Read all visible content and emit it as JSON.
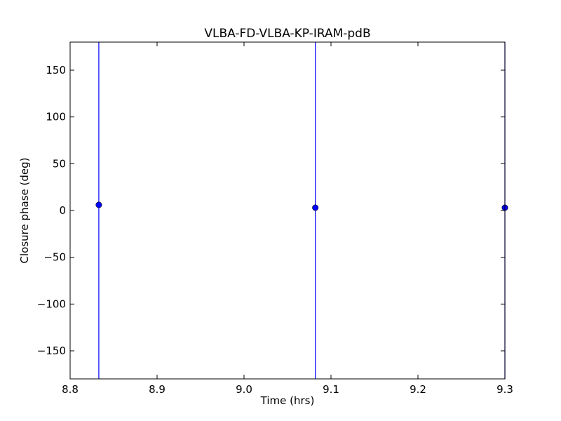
{
  "chart_data": {
    "type": "scatter",
    "title": "VLBA-FD-VLBA-KP-IRAM-pdB",
    "xlabel": "Time (hrs)",
    "ylabel": "Closure phase (deg)",
    "xlim": [
      8.8,
      9.3
    ],
    "ylim": [
      -180,
      180
    ],
    "x_ticks": [
      8.8,
      8.9,
      9.0,
      9.1,
      9.2,
      9.3
    ],
    "x_tick_labels": [
      "8.8",
      "8.9",
      "9.0",
      "9.1",
      "9.2",
      "9.3"
    ],
    "y_ticks": [
      -150,
      -100,
      -50,
      0,
      50,
      100,
      150
    ],
    "y_tick_labels": [
      "−150",
      "−100",
      "−50",
      "0",
      "50",
      "100",
      "150"
    ],
    "grid": false,
    "color": "#0000ff",
    "points": [
      {
        "x": 8.833,
        "y": 6,
        "err_low": -180,
        "err_high": 180
      },
      {
        "x": 9.082,
        "y": 3,
        "err_low": -180,
        "err_high": 180
      },
      {
        "x": 9.3,
        "y": 3,
        "err_low": -180,
        "err_high": 180
      }
    ]
  }
}
